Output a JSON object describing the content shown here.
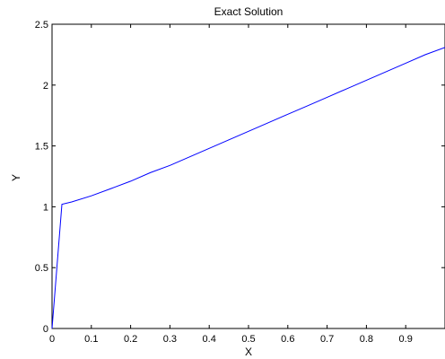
{
  "chart_data": {
    "type": "line",
    "title": "Exact Solution",
    "xlabel": "X",
    "ylabel": "Y",
    "xlim": [
      0,
      1
    ],
    "ylim": [
      0,
      2.5
    ],
    "xticks": [
      0,
      0.1,
      0.2,
      0.3,
      0.4,
      0.5,
      0.6,
      0.7,
      0.8,
      0.9
    ],
    "xtick_labels": [
      "0",
      "0.1",
      "0.2",
      "0.3",
      "0.4",
      "0.5",
      "0.6",
      "0.7",
      "0.8",
      "0.9"
    ],
    "yticks": [
      0,
      0.5,
      1,
      1.5,
      2,
      2.5
    ],
    "ytick_labels": [
      "0",
      "0.5",
      "1",
      "1.5",
      "2",
      "2.5"
    ],
    "grid": false,
    "series": [
      {
        "color": "#0000ff",
        "x": [
          0,
          0.025,
          0.05,
          0.1,
          0.15,
          0.2,
          0.25,
          0.3,
          0.35,
          0.4,
          0.45,
          0.5,
          0.55,
          0.6,
          0.65,
          0.7,
          0.75,
          0.8,
          0.85,
          0.9,
          0.95,
          1.0
        ],
        "y": [
          0,
          1.02,
          1.04,
          1.09,
          1.15,
          1.21,
          1.28,
          1.34,
          1.41,
          1.48,
          1.55,
          1.62,
          1.69,
          1.76,
          1.83,
          1.9,
          1.97,
          2.04,
          2.11,
          2.18,
          2.25,
          2.31
        ]
      }
    ]
  }
}
